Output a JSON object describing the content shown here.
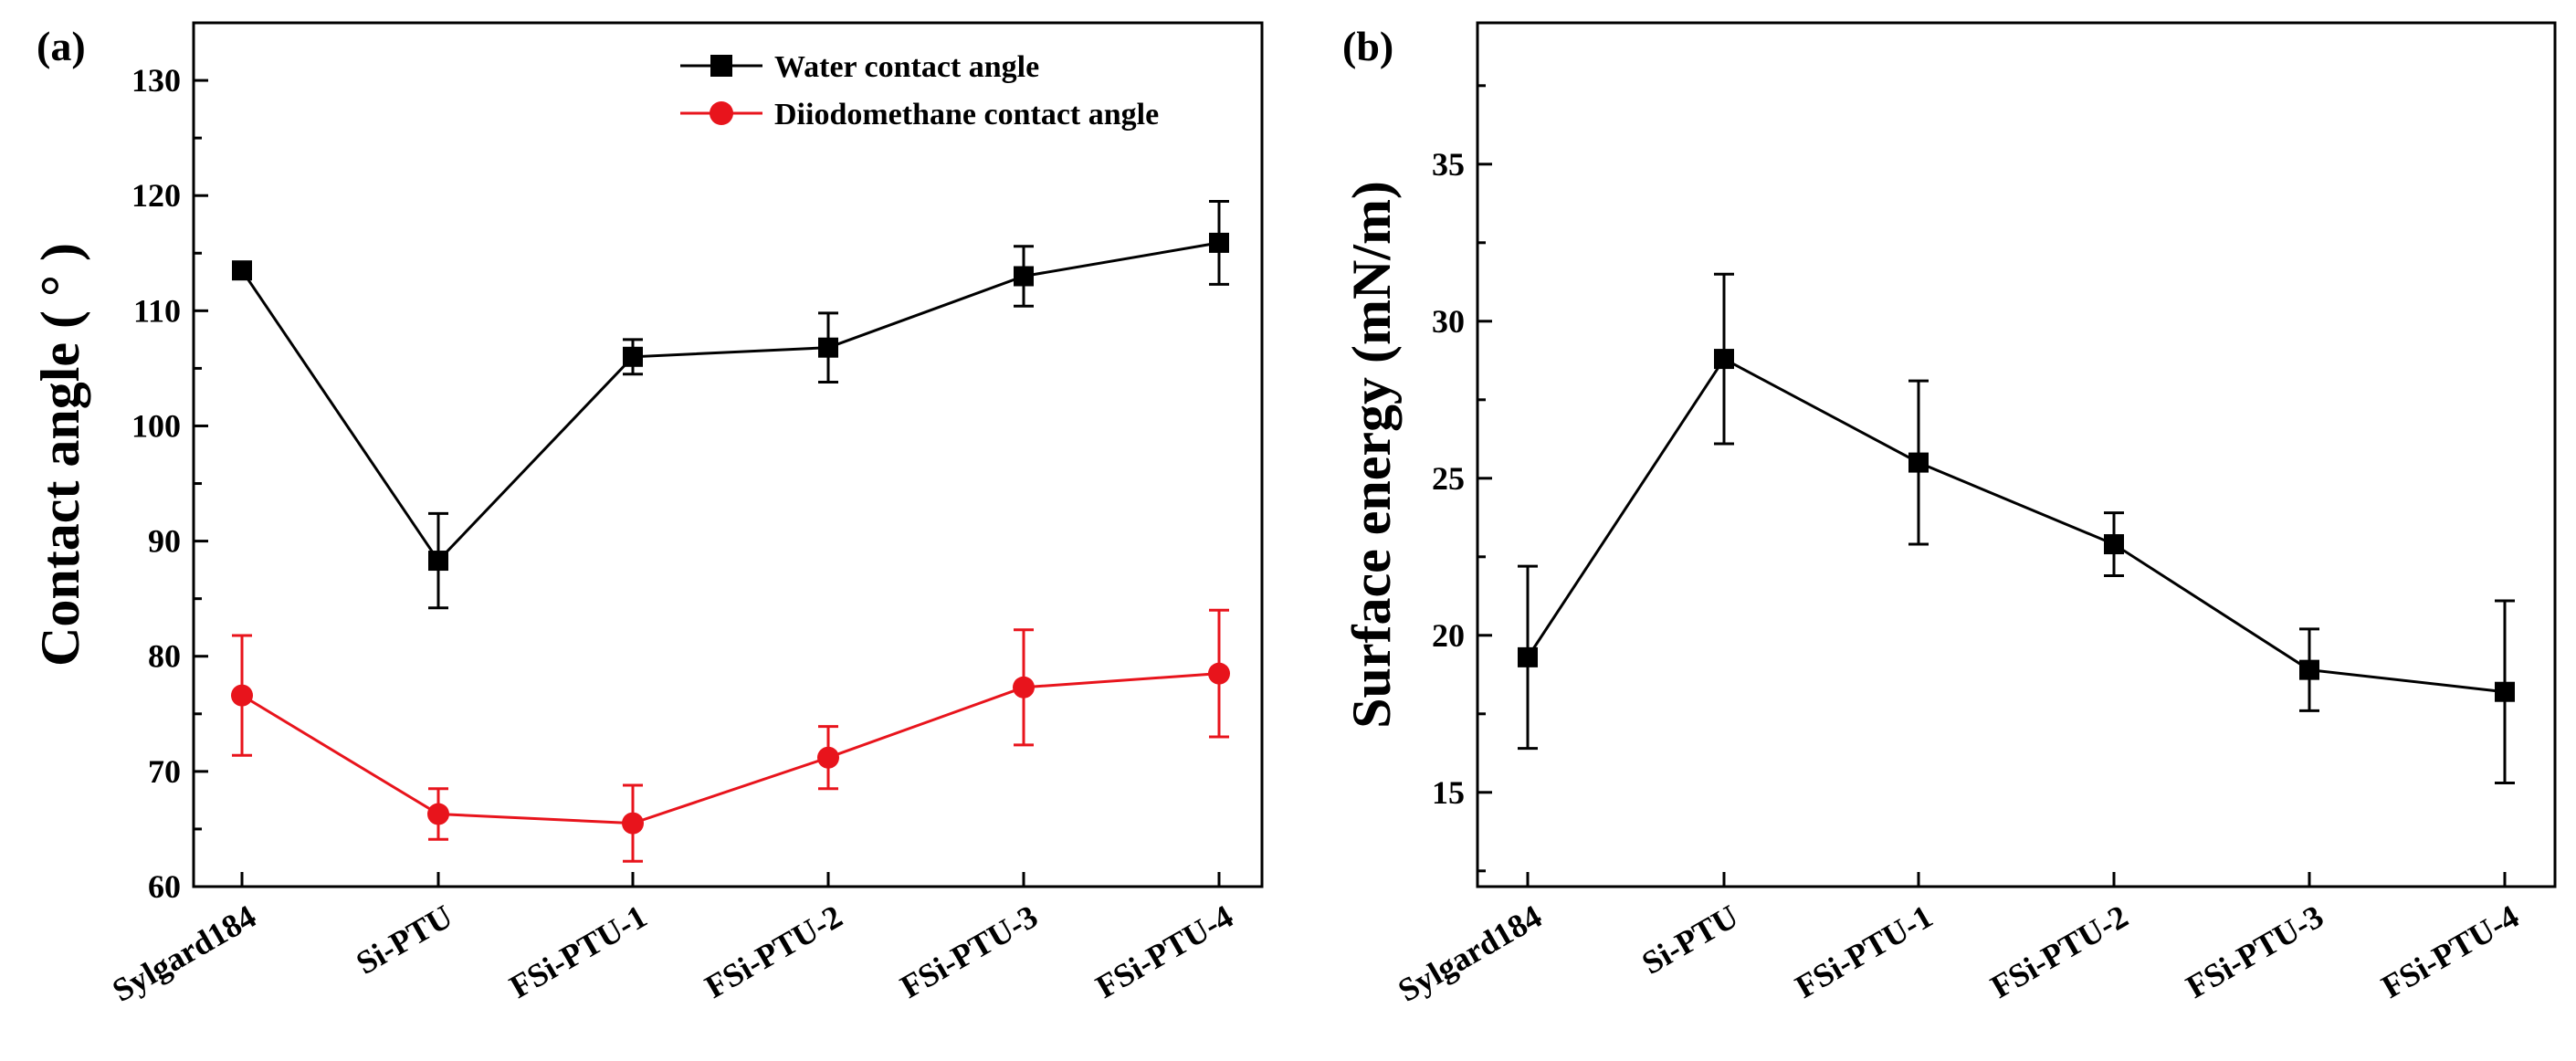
{
  "chart_data": [
    {
      "panel_label": "(a)",
      "type": "line",
      "categories": [
        "Sylgard184",
        "Si-PTU",
        "FSi-PTU-1",
        "FSi-PTU-2",
        "FSi-PTU-3",
        "FSi-PTU-4"
      ],
      "ylabel": "Contact angle ( ° )",
      "xlabel": "",
      "ylim": [
        60,
        135
      ],
      "yticks": [
        60,
        70,
        80,
        90,
        100,
        110,
        120,
        130
      ],
      "legend_position": "top-right",
      "series": [
        {
          "name": "Water contact angle",
          "color": "#000000",
          "marker": "square",
          "values": [
            113.5,
            88.3,
            106.0,
            106.8,
            113.0,
            115.9
          ],
          "errors": [
            0.3,
            4.1,
            1.5,
            3.0,
            2.6,
            3.6
          ]
        },
        {
          "name": "Diiodomethane contact angle",
          "color": "#e8141c",
          "marker": "circle",
          "values": [
            76.6,
            66.3,
            65.5,
            71.2,
            77.3,
            78.5
          ],
          "errors": [
            5.2,
            2.2,
            3.3,
            2.7,
            5.0,
            5.5
          ]
        }
      ]
    },
    {
      "panel_label": "(b)",
      "type": "line",
      "categories": [
        "Sylgard184",
        "Si-PTU",
        "FSi-PTU-1",
        "FSi-PTU-2",
        "FSi-PTU-3",
        "FSi-PTU-4"
      ],
      "ylabel": "Surface energy (mN/m)",
      "xlabel": "",
      "ylim": [
        12,
        39.5
      ],
      "yticks": [
        15,
        20,
        25,
        30,
        35
      ],
      "series": [
        {
          "name": "Surface energy",
          "color": "#000000",
          "marker": "square",
          "values": [
            19.3,
            28.8,
            25.5,
            22.9,
            18.9,
            18.2
          ],
          "errors": [
            2.9,
            2.7,
            2.6,
            1.0,
            1.3,
            2.9
          ]
        }
      ]
    }
  ]
}
